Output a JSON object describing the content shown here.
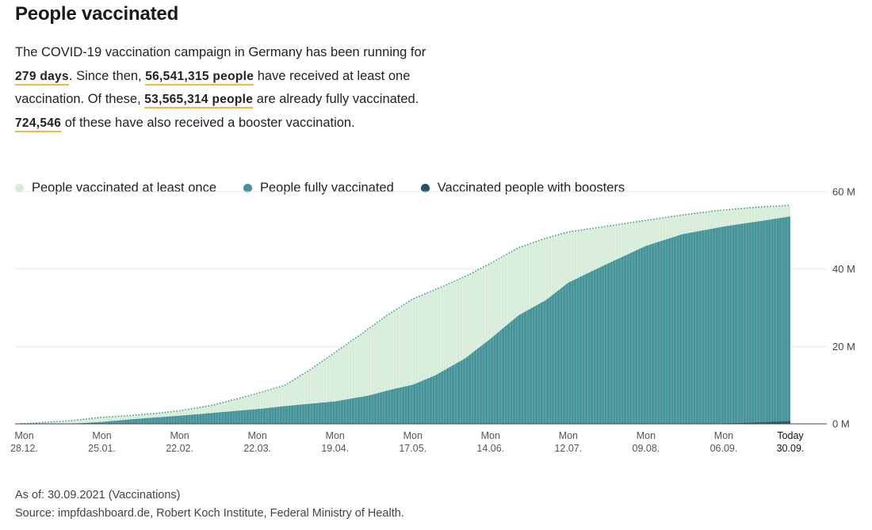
{
  "title": "People vaccinated",
  "intro": {
    "part1": "The COVID-19 vaccination campaign in Germany has been running for ",
    "days": "279 days",
    "part2": ". Since then, ",
    "at_least_once": "56,541,315 people",
    "part3": " have received at least one vaccination. Of these, ",
    "fully": "53,565,314 people",
    "part4": " are already fully vaccinated. ",
    "boosters": "724,546",
    "part5": " of these have also received a booster vaccination."
  },
  "legend": [
    {
      "label": "People vaccinated at least once",
      "color": "#d8edd9"
    },
    {
      "label": "People fully vaccinated",
      "color": "#45949a"
    },
    {
      "label": "Vaccinated people with boosters",
      "color": "#24536b"
    }
  ],
  "footer": {
    "as_of": "As of: 30.09.2021 (Vaccinations)",
    "source": "Source: impfdashboard.de, Robert Koch Institute, Federal Ministry of Health."
  },
  "chart_data": {
    "type": "area",
    "y_unit": "M",
    "ylim": [
      0,
      60
    ],
    "yticks": [
      {
        "value": 0,
        "label": "0 M"
      },
      {
        "value": 20,
        "label": "20 M"
      },
      {
        "value": 40,
        "label": "40 M"
      },
      {
        "value": 60,
        "label": "60 M"
      }
    ],
    "xlim": [
      "2020-12-27",
      "2021-09-30"
    ],
    "xticks": [
      {
        "date": "2020-12-28",
        "day": "Mon",
        "label": "28.12."
      },
      {
        "date": "2021-01-25",
        "day": "Mon",
        "label": "25.01."
      },
      {
        "date": "2021-02-22",
        "day": "Mon",
        "label": "22.02."
      },
      {
        "date": "2021-03-22",
        "day": "Mon",
        "label": "22.03."
      },
      {
        "date": "2021-04-19",
        "day": "Mon",
        "label": "19.04."
      },
      {
        "date": "2021-05-17",
        "day": "Mon",
        "label": "17.05."
      },
      {
        "date": "2021-06-14",
        "day": "Mon",
        "label": "14.06."
      },
      {
        "date": "2021-07-12",
        "day": "Mon",
        "label": "12.07."
      },
      {
        "date": "2021-08-09",
        "day": "Mon",
        "label": "09.08."
      },
      {
        "date": "2021-09-06",
        "day": "Mon",
        "label": "06.09."
      },
      {
        "date": "2021-09-30",
        "day": "Today",
        "label": "30.09.",
        "today": true
      }
    ],
    "series": [
      {
        "name": "People vaccinated at least once",
        "color": "#d8edd9",
        "points": [
          [
            "2020-12-27",
            0
          ],
          [
            "2021-01-05",
            0.4
          ],
          [
            "2021-01-15",
            0.9
          ],
          [
            "2021-01-25",
            1.7
          ],
          [
            "2021-02-05",
            2.2
          ],
          [
            "2021-02-15",
            2.8
          ],
          [
            "2021-02-22",
            3.4
          ],
          [
            "2021-03-05",
            4.7
          ],
          [
            "2021-03-15",
            6.5
          ],
          [
            "2021-03-22",
            7.9
          ],
          [
            "2021-04-01",
            10.0
          ],
          [
            "2021-04-10",
            14.0
          ],
          [
            "2021-04-19",
            18.5
          ],
          [
            "2021-04-28",
            23.0
          ],
          [
            "2021-05-08",
            28.2
          ],
          [
            "2021-05-17",
            32.3
          ],
          [
            "2021-05-28",
            35.6
          ],
          [
            "2021-06-06",
            38.5
          ],
          [
            "2021-06-14",
            41.5
          ],
          [
            "2021-06-24",
            45.5
          ],
          [
            "2021-07-04",
            48.0
          ],
          [
            "2021-07-12",
            49.6
          ],
          [
            "2021-07-25",
            51.0
          ],
          [
            "2021-08-09",
            52.6
          ],
          [
            "2021-08-22",
            54.0
          ],
          [
            "2021-09-06",
            55.3
          ],
          [
            "2021-09-20",
            56.1
          ],
          [
            "2021-09-30",
            56.5
          ]
        ]
      },
      {
        "name": "People fully vaccinated",
        "color": "#45949a",
        "points": [
          [
            "2020-12-27",
            0
          ],
          [
            "2021-01-15",
            0.05
          ],
          [
            "2021-01-25",
            0.5
          ],
          [
            "2021-02-05",
            1.2
          ],
          [
            "2021-02-22",
            2.1
          ],
          [
            "2021-03-22",
            3.8
          ],
          [
            "2021-04-01",
            4.6
          ],
          [
            "2021-04-19",
            5.8
          ],
          [
            "2021-05-01",
            7.3
          ],
          [
            "2021-05-10",
            9.0
          ],
          [
            "2021-05-17",
            10.1
          ],
          [
            "2021-05-25",
            12.5
          ],
          [
            "2021-06-05",
            17.0
          ],
          [
            "2021-06-14",
            22.0
          ],
          [
            "2021-06-24",
            28.0
          ],
          [
            "2021-07-04",
            32.0
          ],
          [
            "2021-07-12",
            36.5
          ],
          [
            "2021-07-25",
            41.0
          ],
          [
            "2021-08-09",
            46.0
          ],
          [
            "2021-08-22",
            49.0
          ],
          [
            "2021-09-06",
            51.0
          ],
          [
            "2021-09-20",
            52.5
          ],
          [
            "2021-09-30",
            53.6
          ]
        ]
      },
      {
        "name": "Vaccinated people with boosters",
        "color": "#24536b",
        "points": [
          [
            "2020-12-27",
            0
          ],
          [
            "2021-08-31",
            0
          ],
          [
            "2021-09-10",
            0.15
          ],
          [
            "2021-09-20",
            0.4
          ],
          [
            "2021-09-30",
            0.72
          ]
        ]
      }
    ]
  }
}
